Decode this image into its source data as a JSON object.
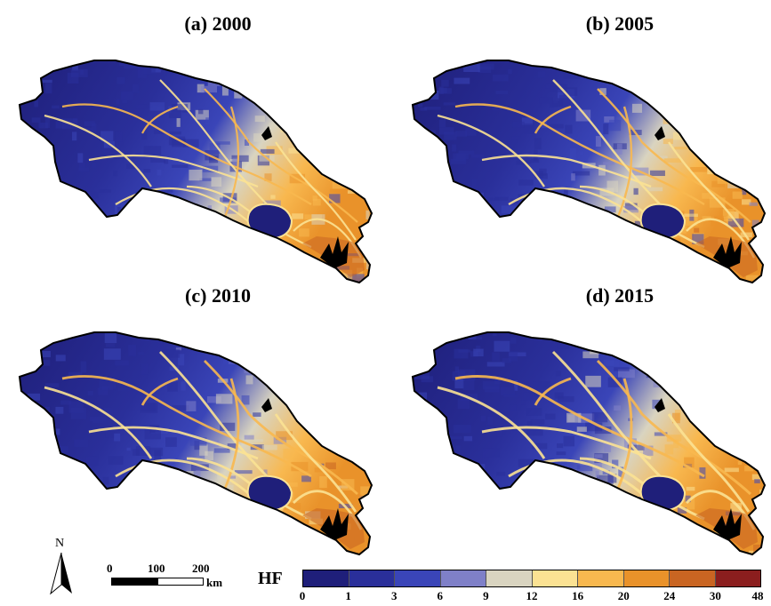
{
  "panels": [
    {
      "title": "(a) 2000",
      "intensity": 1.0
    },
    {
      "title": "(b) 2005",
      "intensity": 1.1
    },
    {
      "title": "(c) 2010",
      "intensity": 1.25
    },
    {
      "title": "(d) 2015",
      "intensity": 1.35
    }
  ],
  "north_arrow": {
    "label": "N"
  },
  "scale_bar": {
    "ticks": [
      "0",
      "100",
      "200"
    ],
    "unit": "km"
  },
  "legend": {
    "title": "HF",
    "breaks": [
      "0",
      "1",
      "3",
      "6",
      "9",
      "12",
      "16",
      "20",
      "24",
      "30",
      "48"
    ],
    "colors": [
      "#1f1f7a",
      "#2a2f9a",
      "#3a45b8",
      "#7f80c8",
      "#d9d4c0",
      "#fbe293",
      "#f8b84f",
      "#e9922a",
      "#c96522",
      "#8b1e1e"
    ]
  }
}
